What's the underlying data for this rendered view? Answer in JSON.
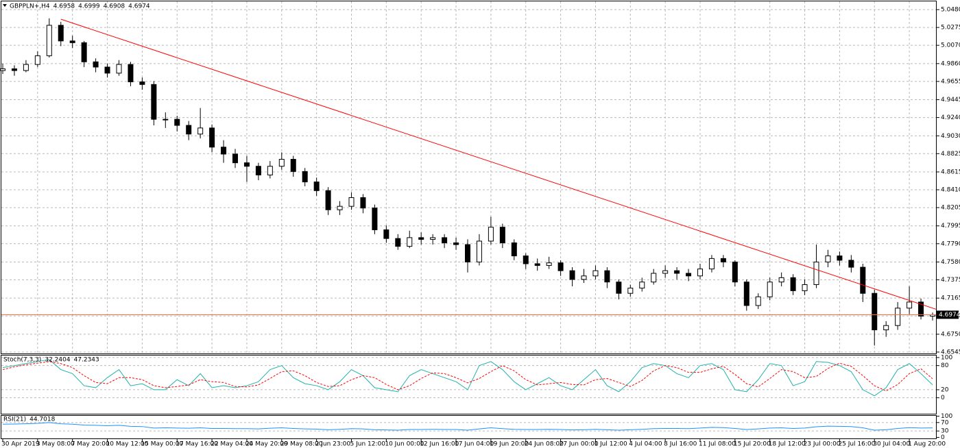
{
  "chart_data": [
    {
      "type": "candlestick",
      "title": "GBPPLN+,H4",
      "candle_color": "#000000",
      "up_fill": "#ffffff",
      "down_fill": "#000000",
      "grid": true,
      "trendline_color": "#ff0000",
      "price_line_color": "#ff6a3d",
      "ylim": [
        4.6521,
        5.0567
      ],
      "yticks": [
        {
          "value": 5.048,
          "label": "5.0480"
        },
        5.0275,
        {
          "value": 5.007,
          "label": "5.0070"
        },
        {
          "value": 4.986,
          "label": "4.9860"
        },
        4.9655,
        4.9445,
        {
          "value": 4.924,
          "label": "4.9240"
        },
        {
          "value": 4.903,
          "label": "4.9030"
        },
        4.8825,
        4.8615,
        {
          "value": 4.841,
          "label": "4.8410"
        },
        4.8205,
        4.7995,
        {
          "value": 4.779,
          "label": "4.7790"
        },
        {
          "value": 4.758,
          "label": "4.7580"
        },
        4.7375,
        4.7165,
        {
          "value": 4.696,
          "label": "4.6960"
        },
        {
          "value": 4.675,
          "label": "4.6750"
        },
        4.6545
      ],
      "xticks": [
        {
          "value": 0,
          "label": "30 Apr 2019"
        },
        {
          "value": 3,
          "label": "3 May 08:00"
        },
        {
          "value": 6,
          "label": "7 May 20:00"
        },
        {
          "value": 9,
          "label": "10 May 12:00"
        },
        {
          "value": 12,
          "label": "15 May 00:00"
        },
        {
          "value": 15,
          "label": "17 May 16:00"
        },
        {
          "value": 18,
          "label": "22 May 04:00"
        },
        {
          "value": 21,
          "label": "24 May 20:00"
        },
        {
          "value": 24,
          "label": "29 May 08:00"
        },
        {
          "value": 27,
          "label": "2 Jun 23:00"
        },
        {
          "value": 30,
          "label": "5 Jun 12:00"
        },
        {
          "value": 33,
          "label": "10 Jun 00:00"
        },
        {
          "value": 36,
          "label": "12 Jun 16:00"
        },
        {
          "value": 39,
          "label": "17 Jun 04:00"
        },
        {
          "value": 42,
          "label": "19 Jun 20:00"
        },
        {
          "value": 45,
          "label": "24 Jun 08:00"
        },
        {
          "value": 48,
          "label": "27 Jun 00:00"
        },
        {
          "value": 51,
          "label": "1 Jul 12:00"
        },
        {
          "value": 54,
          "label": "4 Jul 04:00"
        },
        {
          "value": 57,
          "label": "8 Jul 16:00"
        },
        {
          "value": 60,
          "label": "11 Jul 08:00"
        },
        {
          "value": 63,
          "label": "15 Jul 20:00"
        },
        {
          "value": 66,
          "label": "18 Jul 12:00"
        },
        {
          "value": 69,
          "label": "23 Jul 00:00"
        },
        {
          "value": 72,
          "label": "25 Jul 16:00"
        },
        {
          "value": 75,
          "label": "30 Jul 04:00"
        },
        {
          "value": 78,
          "label": "1 Aug 20:00"
        }
      ],
      "trendline": {
        "start": [
          5,
          5.037
        ],
        "end": [
          80,
          4.705
        ]
      },
      "candles": [
        [
          4.978,
          4.986,
          4.974,
          4.98
        ],
        [
          4.98,
          4.984,
          4.972,
          4.978
        ],
        [
          4.978,
          4.99,
          4.976,
          4.985
        ],
        [
          4.985,
          5.0,
          4.982,
          4.995
        ],
        [
          4.995,
          5.038,
          4.993,
          5.03
        ],
        [
          5.03,
          5.034,
          5.006,
          5.012
        ],
        [
          5.012,
          5.018,
          5.004,
          5.01
        ],
        [
          5.01,
          5.012,
          4.982,
          4.988
        ],
        [
          4.988,
          4.992,
          4.976,
          4.982
        ],
        [
          4.982,
          4.986,
          4.97,
          4.975
        ],
        [
          4.975,
          4.99,
          4.972,
          4.985
        ],
        [
          4.985,
          4.988,
          4.96,
          4.965
        ],
        [
          4.965,
          4.97,
          4.956,
          4.962
        ],
        [
          4.962,
          4.966,
          4.915,
          4.922
        ],
        [
          4.922,
          4.93,
          4.912,
          4.922
        ],
        [
          4.922,
          4.926,
          4.908,
          4.915
        ],
        [
          4.915,
          4.92,
          4.898,
          4.905
        ],
        [
          4.905,
          4.935,
          4.9,
          4.912
        ],
        [
          4.912,
          4.916,
          4.884,
          4.89
        ],
        [
          4.89,
          4.898,
          4.872,
          4.882
        ],
        [
          4.882,
          4.888,
          4.866,
          4.872
        ],
        [
          4.872,
          4.88,
          4.85,
          4.868
        ],
        [
          4.868,
          4.872,
          4.852,
          4.858
        ],
        [
          4.858,
          4.874,
          4.854,
          4.868
        ],
        [
          4.868,
          4.884,
          4.864,
          4.876
        ],
        [
          4.876,
          4.88,
          4.856,
          4.862
        ],
        [
          4.862,
          4.866,
          4.845,
          4.85
        ],
        [
          4.85,
          4.855,
          4.834,
          4.84
        ],
        [
          4.84,
          4.844,
          4.812,
          4.818
        ],
        [
          4.818,
          4.828,
          4.812,
          4.822
        ],
        [
          4.822,
          4.838,
          4.818,
          4.832
        ],
        [
          4.832,
          4.836,
          4.814,
          4.82
        ],
        [
          4.82,
          4.824,
          4.79,
          4.795
        ],
        [
          4.795,
          4.8,
          4.78,
          4.785
        ],
        [
          4.785,
          4.79,
          4.772,
          4.776
        ],
        [
          4.776,
          4.794,
          4.774,
          4.786
        ],
        [
          4.786,
          4.792,
          4.778,
          4.784
        ],
        [
          4.784,
          4.79,
          4.778,
          4.786
        ],
        [
          4.786,
          4.79,
          4.774,
          4.78
        ],
        [
          4.78,
          4.786,
          4.772,
          4.778
        ],
        [
          4.778,
          4.784,
          4.746,
          4.758
        ],
        [
          4.758,
          4.79,
          4.754,
          4.782
        ],
        [
          4.782,
          4.81,
          4.778,
          4.798
        ],
        [
          4.798,
          4.802,
          4.774,
          4.78
        ],
        [
          4.78,
          4.784,
          4.76,
          4.765
        ],
        [
          4.765,
          4.768,
          4.75,
          4.756
        ],
        [
          4.756,
          4.762,
          4.748,
          4.754
        ],
        [
          4.754,
          4.764,
          4.75,
          4.757
        ],
        [
          4.757,
          4.76,
          4.742,
          4.748
        ],
        [
          4.748,
          4.752,
          4.73,
          4.738
        ],
        [
          4.738,
          4.75,
          4.734,
          4.742
        ],
        [
          4.742,
          4.754,
          4.738,
          4.748
        ],
        [
          4.748,
          4.752,
          4.728,
          4.735
        ],
        [
          4.735,
          4.738,
          4.715,
          4.722
        ],
        [
          4.722,
          4.732,
          4.718,
          4.728
        ],
        [
          4.728,
          4.74,
          4.724,
          4.735
        ],
        [
          4.735,
          4.75,
          4.732,
          4.745
        ],
        [
          4.745,
          4.754,
          4.74,
          4.748
        ],
        [
          4.748,
          4.752,
          4.738,
          4.745
        ],
        [
          4.745,
          4.75,
          4.736,
          4.742
        ],
        [
          4.742,
          4.756,
          4.738,
          4.75
        ],
        [
          4.75,
          4.766,
          4.746,
          4.762
        ],
        [
          4.762,
          4.766,
          4.752,
          4.758
        ],
        [
          4.758,
          4.76,
          4.73,
          4.735
        ],
        [
          4.735,
          4.738,
          4.702,
          4.708
        ],
        [
          4.708,
          4.722,
          4.704,
          4.718
        ],
        [
          4.718,
          4.74,
          4.714,
          4.735
        ],
        [
          4.735,
          4.746,
          4.73,
          4.74
        ],
        [
          4.74,
          4.744,
          4.72,
          4.725
        ],
        [
          4.725,
          4.738,
          4.72,
          4.732
        ],
        [
          4.732,
          4.778,
          4.728,
          4.758
        ],
        [
          4.758,
          4.772,
          4.752,
          4.765
        ],
        [
          4.765,
          4.77,
          4.754,
          4.76
        ],
        [
          4.76,
          4.766,
          4.746,
          4.752
        ],
        [
          4.752,
          4.756,
          4.712,
          4.722
        ],
        [
          4.722,
          4.726,
          4.662,
          4.68
        ],
        [
          4.68,
          4.69,
          4.672,
          4.685
        ],
        [
          4.685,
          4.712,
          4.68,
          4.705
        ],
        [
          4.705,
          4.73,
          4.698,
          4.712
        ],
        [
          4.712,
          4.716,
          4.692,
          4.6958
        ],
        [
          4.6958,
          4.6999,
          4.6908,
          4.6974
        ]
      ]
    },
    {
      "type": "line",
      "title": "Stoch(7,3,3)",
      "ylim": [
        -38,
        105
      ],
      "yticks": [
        0,
        20,
        80,
        100
      ],
      "series": [
        {
          "color": "#20b2aa",
          "dash": false,
          "values": [
            75,
            80,
            85,
            90,
            95,
            70,
            60,
            30,
            25,
            50,
            70,
            30,
            35,
            20,
            20,
            45,
            30,
            60,
            25,
            30,
            25,
            30,
            40,
            70,
            80,
            50,
            35,
            30,
            20,
            40,
            70,
            55,
            25,
            20,
            15,
            55,
            70,
            60,
            50,
            40,
            20,
            80,
            90,
            70,
            40,
            20,
            35,
            50,
            30,
            20,
            45,
            70,
            30,
            15,
            40,
            75,
            85,
            80,
            60,
            50,
            80,
            85,
            70,
            20,
            15,
            45,
            85,
            80,
            30,
            40,
            90,
            88,
            80,
            65,
            20,
            5,
            25,
            70,
            85,
            60,
            32.2404
          ]
        },
        {
          "color": "#ff0000",
          "dash": true,
          "values": [
            70,
            77,
            82,
            86,
            90,
            85,
            75,
            55,
            38,
            35,
            50,
            50,
            45,
            30,
            25,
            28,
            32,
            45,
            40,
            38,
            28,
            27,
            32,
            48,
            65,
            67,
            55,
            38,
            28,
            30,
            45,
            55,
            50,
            33,
            20,
            30,
            48,
            62,
            60,
            50,
            37,
            48,
            65,
            80,
            67,
            45,
            32,
            35,
            38,
            33,
            32,
            45,
            48,
            38,
            28,
            43,
            67,
            80,
            75,
            63,
            63,
            72,
            78,
            58,
            35,
            27,
            48,
            70,
            65,
            50,
            53,
            73,
            86,
            78,
            55,
            30,
            17,
            33,
            60,
            72,
            47.2343
          ]
        }
      ]
    },
    {
      "type": "line",
      "title": "RSI(21)",
      "ylim": [
        -5,
        105
      ],
      "yticks": [
        0,
        30,
        70,
        100
      ],
      "series": [
        {
          "color": "#1e90ff",
          "dash": false,
          "values": [
            62,
            63,
            64,
            66,
            70,
            64,
            62,
            58,
            57,
            55,
            57,
            52,
            51,
            44,
            45,
            44,
            43,
            45,
            42,
            42,
            41,
            41,
            40,
            43,
            45,
            42,
            40,
            39,
            36,
            38,
            41,
            40,
            36,
            35,
            34,
            37,
            37,
            38,
            37,
            37,
            34,
            40,
            45,
            41,
            38,
            37,
            37,
            38,
            37,
            35,
            36,
            38,
            36,
            34,
            36,
            38,
            41,
            42,
            42,
            41,
            44,
            47,
            46,
            42,
            37,
            40,
            44,
            45,
            42,
            44,
            50,
            53,
            52,
            51,
            45,
            34,
            36,
            42,
            46,
            44,
            44.7018
          ]
        }
      ]
    }
  ]
}
